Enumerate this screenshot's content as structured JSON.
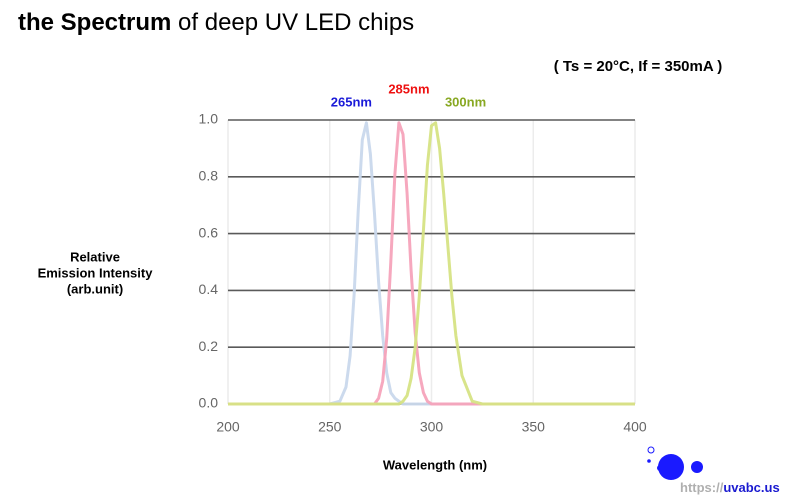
{
  "chart_data": {
    "type": "line",
    "title": [
      "the Spectrum",
      "of deep UV LED chips"
    ],
    "subtitle": "( Ts = 20°C, If = 350mA )",
    "y_label": [
      "Relative",
      "Emission Intensity",
      "(arb.unit)"
    ],
    "x_label": "Wavelength (nm)",
    "watermark": [
      "https://",
      "uvabc.us"
    ],
    "x": [
      200,
      240,
      250,
      255,
      258,
      260,
      262,
      264,
      266,
      268,
      270,
      272,
      274,
      276,
      278,
      280,
      282,
      284,
      286,
      288,
      290,
      292,
      294,
      296,
      298,
      300,
      302,
      304,
      306,
      308,
      310,
      312,
      315,
      320,
      325,
      330,
      340,
      400
    ],
    "series": [
      {
        "name": "265nm",
        "color": "#c9d8ec",
        "label_color": "#1a1ad8",
        "values": [
          0,
          0,
          0,
          0.01,
          0.06,
          0.17,
          0.39,
          0.68,
          0.93,
          0.99,
          0.88,
          0.67,
          0.43,
          0.24,
          0.11,
          0.04,
          0.02,
          0.01,
          0,
          0,
          0,
          0,
          0,
          0,
          0,
          0,
          0,
          0,
          0,
          0,
          0,
          0,
          0,
          0,
          0,
          0,
          0,
          0
        ]
      },
      {
        "name": "285nm",
        "color": "#f5a3bb",
        "label_color": "#ee1111",
        "values": [
          0,
          0,
          0,
          0,
          0,
          0,
          0,
          0,
          0,
          0,
          0,
          0,
          0.02,
          0.08,
          0.23,
          0.5,
          0.81,
          0.99,
          0.95,
          0.74,
          0.47,
          0.25,
          0.11,
          0.04,
          0.01,
          0,
          0,
          0,
          0,
          0,
          0,
          0,
          0,
          0,
          0,
          0,
          0,
          0
        ]
      },
      {
        "name": "300nm",
        "color": "#d6e384",
        "label_color": "#88a822",
        "values": [
          0,
          0,
          0,
          0,
          0,
          0,
          0,
          0,
          0,
          0,
          0,
          0,
          0,
          0,
          0,
          0,
          0,
          0,
          0.01,
          0.03,
          0.09,
          0.2,
          0.38,
          0.61,
          0.84,
          0.98,
          0.99,
          0.9,
          0.74,
          0.56,
          0.38,
          0.24,
          0.1,
          0.01,
          0,
          0,
          0,
          0
        ]
      }
    ],
    "xlim": [
      200,
      400
    ],
    "xticks": [
      200,
      250,
      300,
      350,
      400
    ],
    "ylim": [
      0,
      1
    ],
    "yticks": [
      {
        "value": 0,
        "label": "0.0"
      },
      0.2,
      0.4,
      0.6,
      0.8,
      {
        "value": 1,
        "label": "1.0"
      }
    ],
    "grid": true
  }
}
